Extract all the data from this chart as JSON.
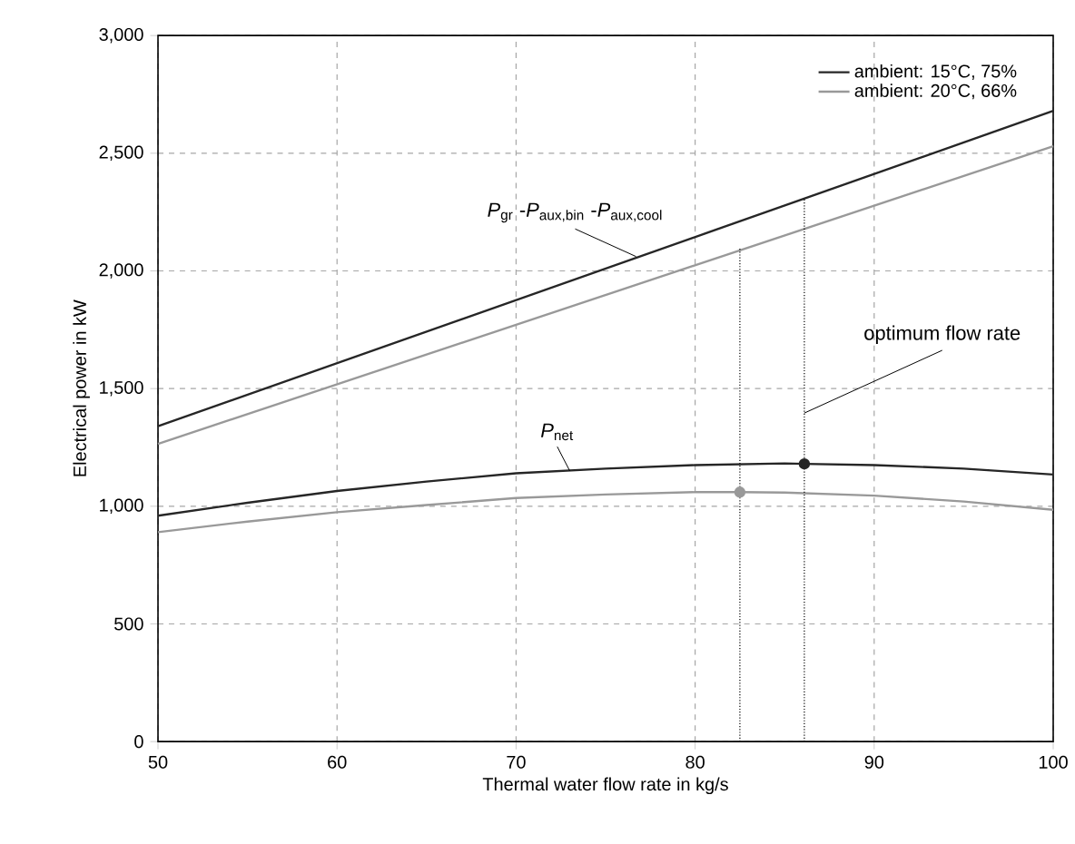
{
  "chart_data": {
    "type": "line",
    "xlabel": "Thermal water flow rate in kg/s",
    "ylabel": "Electrical power in kW",
    "xlim": [
      50,
      100
    ],
    "xticks": [
      50,
      60,
      70,
      80,
      90,
      100
    ],
    "ylim": [
      0,
      3000
    ],
    "yticks": [
      0,
      {
        "value": 500,
        "label": "500"
      },
      {
        "value": 1000,
        "label": "1,000"
      },
      {
        "value": 1500,
        "label": "1,500"
      },
      {
        "value": 2000,
        "label": "2,000"
      },
      {
        "value": 2500,
        "label": "2,500"
      },
      {
        "value": 3000,
        "label": "3,000"
      }
    ],
    "grid": true,
    "legend": "top right",
    "series": [
      {
        "name": "ambient: 15°C, 75%",
        "color": "#262626",
        "marker": "none",
        "x": [
          50,
          100
        ],
        "values": [
          1340,
          2680
        ]
      },
      {
        "name": "ambient: 20°C, 66%",
        "color": "#999999",
        "marker": "none",
        "x": [
          50,
          100
        ],
        "values": [
          1265,
          2530
        ]
      },
      {
        "color": "#262626",
        "marker": "none",
        "x": [
          50,
          55,
          60,
          65,
          70,
          75,
          80,
          85,
          86.1,
          90,
          95,
          100
        ],
        "values": [
          960,
          1015,
          1065,
          1105,
          1140,
          1160,
          1175,
          1182,
          1180,
          1175,
          1160,
          1135
        ]
      },
      {
        "color": "#999999",
        "marker": "none",
        "x": [
          50,
          55,
          60,
          65,
          70,
          75,
          80,
          82.5,
          85,
          90,
          95,
          100
        ],
        "values": [
          890,
          935,
          975,
          1005,
          1035,
          1050,
          1060,
          1060,
          1058,
          1045,
          1020,
          985
        ]
      },
      {
        "color": "#000000",
        "marker": "none",
        "line_style": "dotted",
        "x": [
          82.5,
          82.5
        ],
        "values": [
          0,
          2095
        ]
      },
      {
        "color": "#000000",
        "marker": "none",
        "line_style": "dotted",
        "x": [
          86.1,
          86.1
        ],
        "values": [
          0,
          2310
        ]
      },
      {
        "color": "#262626",
        "type": "scatter",
        "marker": "circle",
        "x": [
          86.1
        ],
        "values": [
          1180
        ]
      },
      {
        "color": "#999999",
        "type": "scatter",
        "marker": "circle",
        "x": [
          82.5
        ],
        "values": [
          1060
        ]
      }
    ],
    "annotations": [
      {
        "text": "*P*$_{gr}$ -*P*$_{aux,bin}$ -*P*$_{aux,cool}$",
        "x": 76.7,
        "y": 2061
      },
      {
        "text": "*P*$_{net}$",
        "x": 73,
        "y": 1150
      },
      {
        "text": "optimum flow rate",
        "x": 86.1,
        "y": 1396
      }
    ]
  }
}
